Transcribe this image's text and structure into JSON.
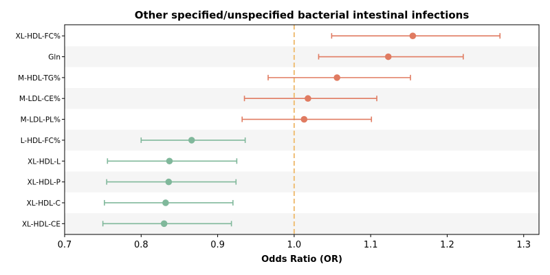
{
  "chart_data": {
    "type": "scatter",
    "title": "Other specified/unspecified bacterial intestinal infections",
    "xlabel": "Odds Ratio (OR)",
    "ylabel": "",
    "xlim": [
      0.7,
      1.32
    ],
    "xticks": [
      0.7,
      0.8,
      0.9,
      1.0,
      1.1,
      1.2,
      1.3
    ],
    "xtick_labels": [
      "0.7",
      "0.8",
      "0.9",
      "1.0",
      "1.1",
      "1.2",
      "1.3"
    ],
    "reference_line": 1.0,
    "reference_color": "#f0c27f",
    "alternate_row_shading": true,
    "colors": {
      "positive": "#e07b61",
      "negative": "#80b89b"
    },
    "categories": [
      "XL-HDL-FC%",
      "Gln",
      "M-HDL-TG%",
      "M-LDL-CE%",
      "M-LDL-PL%",
      "L-HDL-FC%",
      "XL-HDL-L",
      "XL-HDL-P",
      "XL-HDL-C",
      "XL-HDL-CE"
    ],
    "or": [
      1.155,
      1.123,
      1.056,
      1.018,
      1.013,
      0.866,
      0.837,
      0.836,
      0.832,
      0.83
    ],
    "ci_low": [
      1.049,
      1.032,
      0.966,
      0.935,
      0.932,
      0.8,
      0.756,
      0.755,
      0.752,
      0.75
    ],
    "ci_high": [
      1.269,
      1.221,
      1.152,
      1.108,
      1.101,
      0.936,
      0.925,
      0.924,
      0.92,
      0.918
    ]
  }
}
